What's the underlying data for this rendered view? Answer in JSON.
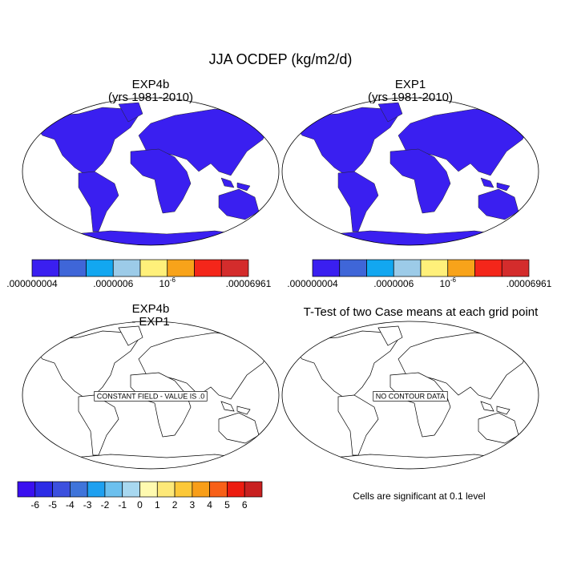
{
  "title": "JJA OCDEP (kg/m2/d)",
  "panels": [
    {
      "title": "EXP4b",
      "subtitle": "(yrs 1981-2010)"
    },
    {
      "title": "EXP1",
      "subtitle": "(yrs 1981-2010)"
    },
    {
      "title": "EXP4b",
      "subtitle": "- EXP1",
      "message": "CONSTANT FIELD - VALUE IS .0"
    },
    {
      "title": "T-Test of two Case means at each grid point",
      "message": "NO CONTOUR DATA",
      "note": "Cells are significant at 0.1 level"
    }
  ],
  "colorbars": [
    {
      "colors": [
        "#3a1ff0",
        "#3f66d8",
        "#12a7f0",
        "#9ccbe8",
        "#fff07a",
        "#f8a31a",
        "#f4261a",
        "#d42c2c"
      ],
      "labels": [
        ".000000004",
        ".0000006",
        {
          "base": "10",
          "exponent": "-6"
        },
        ".00006961"
      ]
    },
    {
      "colors": [
        "#3a1ff0",
        "#3f66d8",
        "#12a7f0",
        "#9ccbe8",
        "#fff07a",
        "#f8a31a",
        "#f4261a",
        "#d42c2c"
      ],
      "labels": [
        ".000000004",
        ".0000006",
        {
          "base": "10",
          "exponent": "-6"
        },
        ".00006961"
      ]
    },
    {
      "colors": [
        "#3a10f0",
        "#2c2ce6",
        "#3c50de",
        "#3f74da",
        "#1ea0f0",
        "#6cc0ee",
        "#a8d8f0",
        "#fffab0",
        "#fde878",
        "#fcc838",
        "#f89e18",
        "#f86018",
        "#ec1c10",
        "#c82020"
      ],
      "labels": [
        -6,
        -5,
        -4,
        -3,
        -2,
        -1,
        0,
        1,
        2,
        3,
        4,
        5,
        6
      ]
    }
  ]
}
